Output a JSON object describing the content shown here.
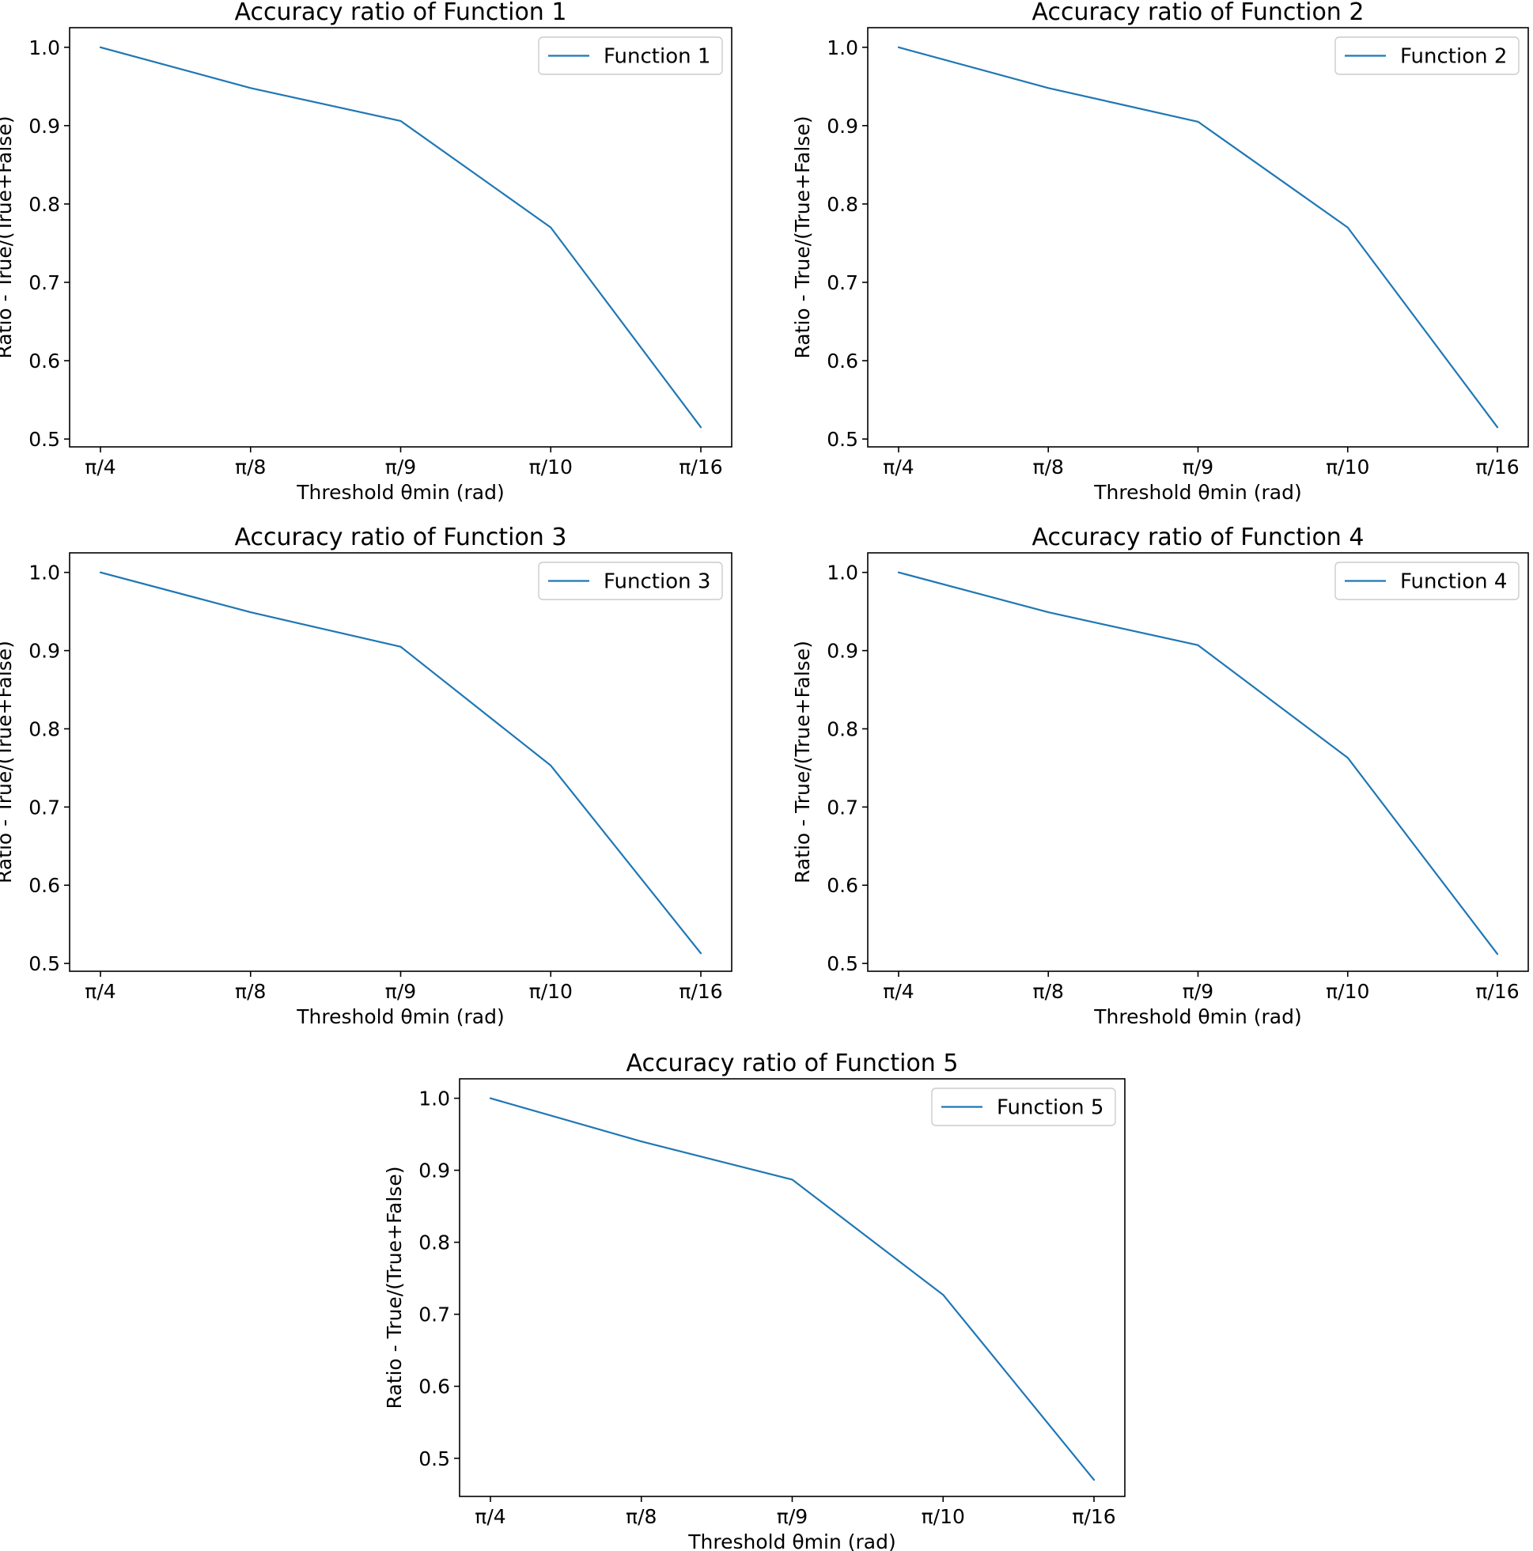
{
  "colors": {
    "line": "#1f77b4",
    "axes": "#000000",
    "legend_border": "#cccccc",
    "background": "#ffffff"
  },
  "chart_data": [
    {
      "type": "line",
      "title": "Accuracy ratio of Function 1",
      "xlabel": "Threshold  θmin (rad)",
      "ylabel": "Ratio - True/(True+False)",
      "categories": [
        "π/4",
        "π/8",
        "π/9",
        "π/10",
        "π/16"
      ],
      "series": [
        {
          "name": "Function 1",
          "values": [
            1.0,
            0.948,
            0.906,
            0.77,
            0.515
          ]
        }
      ],
      "ylim": [
        0.49,
        1.025
      ],
      "yticks": [
        0.5,
        0.6,
        0.7,
        0.8,
        0.9,
        1.0
      ],
      "ytick_labels": [
        "0.5",
        "0.6",
        "0.7",
        "0.8",
        "0.9",
        "1.0"
      ],
      "legend": "top-right",
      "grid": false
    },
    {
      "type": "line",
      "title": "Accuracy ratio of Function 2",
      "xlabel": "Threshold  θmin (rad)",
      "ylabel": "Ratio - True/(True+False)",
      "categories": [
        "π/4",
        "π/8",
        "π/9",
        "π/10",
        "π/16"
      ],
      "series": [
        {
          "name": "Function 2",
          "values": [
            1.0,
            0.948,
            0.905,
            0.77,
            0.515
          ]
        }
      ],
      "ylim": [
        0.49,
        1.025
      ],
      "yticks": [
        0.5,
        0.6,
        0.7,
        0.8,
        0.9,
        1.0
      ],
      "ytick_labels": [
        "0.5",
        "0.6",
        "0.7",
        "0.8",
        "0.9",
        "1.0"
      ],
      "legend": "top-right",
      "grid": false
    },
    {
      "type": "line",
      "title": "Accuracy ratio of Function 3",
      "xlabel": "Threshold  θmin (rad)",
      "ylabel": "Ratio - True/(True+False)",
      "categories": [
        "π/4",
        "π/8",
        "π/9",
        "π/10",
        "π/16"
      ],
      "series": [
        {
          "name": "Function 3",
          "values": [
            1.0,
            0.949,
            0.905,
            0.753,
            0.513
          ]
        }
      ],
      "ylim": [
        0.49,
        1.025
      ],
      "yticks": [
        0.5,
        0.6,
        0.7,
        0.8,
        0.9,
        1.0
      ],
      "ytick_labels": [
        "0.5",
        "0.6",
        "0.7",
        "0.8",
        "0.9",
        "1.0"
      ],
      "legend": "top-right",
      "grid": false
    },
    {
      "type": "line",
      "title": "Accuracy ratio of Function 4",
      "xlabel": "Threshold  θmin (rad)",
      "ylabel": "Ratio - True/(True+False)",
      "categories": [
        "π/4",
        "π/8",
        "π/9",
        "π/10",
        "π/16"
      ],
      "series": [
        {
          "name": "Function 4",
          "values": [
            1.0,
            0.949,
            0.907,
            0.763,
            0.512
          ]
        }
      ],
      "ylim": [
        0.49,
        1.025
      ],
      "yticks": [
        0.5,
        0.6,
        0.7,
        0.8,
        0.9,
        1.0
      ],
      "ytick_labels": [
        "0.5",
        "0.6",
        "0.7",
        "0.8",
        "0.9",
        "1.0"
      ],
      "legend": "top-right",
      "grid": false
    },
    {
      "type": "line",
      "title": "Accuracy ratio of Function 5",
      "xlabel": "Threshold  θmin (rad)",
      "ylabel": "Ratio - True/(True+False)",
      "categories": [
        "π/4",
        "π/8",
        "π/9",
        "π/10",
        "π/16"
      ],
      "series": [
        {
          "name": "Function 5",
          "values": [
            1.0,
            0.94,
            0.887,
            0.727,
            0.47
          ]
        }
      ],
      "ylim": [
        0.447,
        1.027
      ],
      "yticks": [
        0.5,
        0.6,
        0.7,
        0.8,
        0.9,
        1.0
      ],
      "ytick_labels": [
        "0.5",
        "0.6",
        "0.7",
        "0.8",
        "0.9",
        "1.0"
      ],
      "legend": "top-right",
      "grid": false
    }
  ]
}
